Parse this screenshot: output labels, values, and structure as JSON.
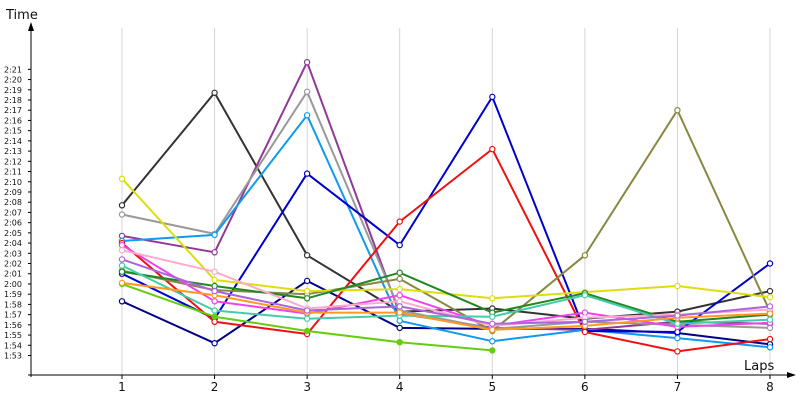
{
  "chart_data": {
    "type": "line",
    "xlabel": "Laps",
    "ylabel": "Time",
    "x": [
      1,
      2,
      3,
      4,
      5,
      6,
      7,
      8
    ],
    "xlim": [
      0.1,
      8.1
    ],
    "ylim": [
      113,
      143
    ],
    "grid": {
      "vertical": true,
      "horizontal": false
    },
    "y_ticks": [
      {
        "value": 113,
        "label": "1:53"
      },
      {
        "value": 114,
        "label": "1:54"
      },
      {
        "value": 115,
        "label": "1:55"
      },
      {
        "value": 116,
        "label": "1:56"
      },
      {
        "value": 117,
        "label": "1:57"
      },
      {
        "value": 118,
        "label": "1:58"
      },
      {
        "value": 119,
        "label": "1:59"
      },
      {
        "value": 120,
        "label": "2:00"
      },
      {
        "value": 121,
        "label": "2:01"
      },
      {
        "value": 122,
        "label": "2:02"
      },
      {
        "value": 123,
        "label": "2:03"
      },
      {
        "value": 124,
        "label": "2:04"
      },
      {
        "value": 125,
        "label": "2:05"
      },
      {
        "value": 126,
        "label": "2:06"
      },
      {
        "value": 127,
        "label": "2:07"
      },
      {
        "value": 128,
        "label": "2:08"
      },
      {
        "value": 129,
        "label": "2:09"
      },
      {
        "value": 130,
        "label": "2:10"
      },
      {
        "value": 131,
        "label": "2:11"
      },
      {
        "value": 132,
        "label": "2:12"
      },
      {
        "value": 133,
        "label": "2:13"
      },
      {
        "value": 134,
        "label": "2:14"
      },
      {
        "value": 135,
        "label": "2:15"
      },
      {
        "value": 136,
        "label": "2:16"
      },
      {
        "value": 137,
        "label": "2:17"
      },
      {
        "value": 138,
        "label": "2:18"
      },
      {
        "value": 139,
        "label": "2:19"
      },
      {
        "value": 140,
        "label": "2:20"
      },
      {
        "value": 141,
        "label": "2:21"
      }
    ],
    "x_ticks": [
      {
        "value": 1,
        "label": "1"
      },
      {
        "value": 2,
        "label": "2"
      },
      {
        "value": 3,
        "label": "3"
      },
      {
        "value": 4,
        "label": "4"
      },
      {
        "value": 5,
        "label": "5"
      },
      {
        "value": 6,
        "label": "6"
      },
      {
        "value": 7,
        "label": "7"
      },
      {
        "value": 8,
        "label": "8"
      }
    ],
    "series": [
      {
        "color": "#000088",
        "values": [
          118.3,
          114.2,
          120.3,
          115.7,
          115.6,
          115.6,
          115.2,
          114.1
        ]
      },
      {
        "color": "#333333",
        "values": [
          127.7,
          138.7,
          122.8,
          117.3,
          117.6,
          116.6,
          117.3,
          119.3
        ]
      },
      {
        "color": "#8e3a96",
        "values": [
          124.7,
          123.1,
          141.7,
          117.1,
          115.7,
          115.5,
          116.3,
          116.1
        ]
      },
      {
        "color": "#999999",
        "values": [
          126.8,
          124.9,
          138.8,
          117.4,
          115.6,
          116.3,
          116.0,
          115.7
        ]
      },
      {
        "color": "#1199ee",
        "values": [
          124.2,
          124.8,
          136.5,
          116.4,
          114.4,
          115.5,
          114.7,
          113.8
        ]
      },
      {
        "color": "#0000cc",
        "values": [
          121.0,
          116.6,
          130.8,
          123.8,
          138.3,
          115.4,
          115.3,
          122.0
        ]
      },
      {
        "color": "#ee1111",
        "values": [
          124.0,
          116.3,
          115.1,
          126.1,
          133.2,
          115.3,
          113.4,
          114.6
        ]
      },
      {
        "color": "#888844",
        "values": [
          121.3,
          119.4,
          119.0,
          120.5,
          115.4,
          122.8,
          137.0,
          117.3
        ]
      },
      {
        "color": "#dddd11",
        "values": [
          130.3,
          120.4,
          119.3,
          119.5,
          118.6,
          119.2,
          119.8,
          118.7
        ]
      },
      {
        "color": "#228822",
        "values": [
          121.2,
          119.8,
          118.6,
          121.1,
          117.2,
          119.1,
          116.3,
          117.0
        ]
      },
      {
        "color": "#66cc11",
        "values": [
          120.0,
          116.8,
          115.4,
          114.3,
          113.5,
          null,
          null,
          null
        ]
      },
      {
        "color": "#ee44ee",
        "values": [
          123.8,
          118.3,
          117.1,
          118.9,
          115.9,
          117.2,
          115.8,
          116.2
        ]
      },
      {
        "color": "#ffaacc",
        "values": [
          123.3,
          121.2,
          117.6,
          118.3,
          115.9,
          116.7,
          117.0,
          117.5
        ]
      },
      {
        "color": "#44ccaa",
        "values": [
          121.8,
          117.4,
          116.6,
          116.9,
          116.8,
          118.9,
          116.1,
          116.5
        ]
      },
      {
        "color": "#ff9922",
        "values": [
          120.1,
          118.9,
          117.2,
          117.2,
          115.5,
          115.9,
          116.7,
          117.1
        ]
      },
      {
        "color": "#aa66dd",
        "values": [
          122.4,
          119.3,
          117.4,
          117.8,
          116.1,
          116.3,
          116.9,
          117.8
        ]
      }
    ]
  }
}
